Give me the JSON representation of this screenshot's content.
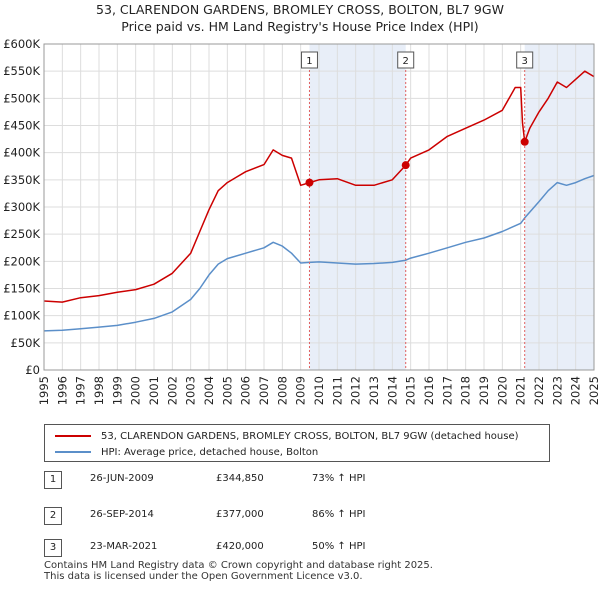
{
  "chart_data": {
    "type": "line",
    "title": "53, CLARENDON GARDENS, BROMLEY CROSS, BOLTON, BL7 9GW",
    "subtitle": "Price paid vs. HM Land Registry's House Price Index (HPI)",
    "xlabel": "",
    "ylabel": "",
    "xlim": [
      1995,
      2025
    ],
    "ylim": [
      0,
      600000
    ],
    "x_ticks": [
      "1995",
      "1996",
      "1997",
      "1998",
      "1999",
      "2000",
      "2001",
      "2002",
      "2003",
      "2004",
      "2005",
      "2006",
      "2007",
      "2008",
      "2009",
      "2010",
      "2011",
      "2012",
      "2013",
      "2014",
      "2015",
      "2016",
      "2017",
      "2018",
      "2019",
      "2020",
      "2021",
      "2022",
      "2023",
      "2024",
      "2025"
    ],
    "y_ticks": [
      {
        "value": 0,
        "label": "£0"
      },
      {
        "value": 50000,
        "label": "£50K"
      },
      {
        "value": 100000,
        "label": "£100K"
      },
      {
        "value": 150000,
        "label": "£150K"
      },
      {
        "value": 200000,
        "label": "£200K"
      },
      {
        "value": 250000,
        "label": "£250K"
      },
      {
        "value": 300000,
        "label": "£300K"
      },
      {
        "value": 350000,
        "label": "£350K"
      },
      {
        "value": 400000,
        "label": "£400K"
      },
      {
        "value": 450000,
        "label": "£450K"
      },
      {
        "value": 500000,
        "label": "£500K"
      },
      {
        "value": 550000,
        "label": "£550K"
      },
      {
        "value": 600000,
        "label": "£600K"
      }
    ],
    "grid": true,
    "shaded_ranges": [
      [
        2009.48,
        2014.73
      ],
      [
        2021.22,
        2025.0
      ]
    ],
    "series": [
      {
        "name": "53, CLARENDON GARDENS, BROMLEY CROSS, BOLTON, BL7 9GW (detached house)",
        "color": "#cc0000",
        "x": [
          1995.0,
          1996.0,
          1997.0,
          1998.0,
          1999.0,
          2000.0,
          2001.0,
          2002.0,
          2003.0,
          2003.5,
          2004.0,
          2004.5,
          2005.0,
          2005.5,
          2006.0,
          2007.0,
          2007.5,
          2008.0,
          2008.5,
          2009.0,
          2009.48,
          2010.0,
          2011.0,
          2012.0,
          2013.0,
          2014.0,
          2014.73,
          2015.0,
          2016.0,
          2017.0,
          2018.0,
          2019.0,
          2020.0,
          2020.7,
          2021.0,
          2021.1,
          2021.22,
          2021.5,
          2022.0,
          2022.5,
          2023.0,
          2023.5,
          2024.0,
          2024.5,
          2025.0
        ],
        "values": [
          127000,
          125000,
          133000,
          137000,
          143000,
          148000,
          158000,
          178000,
          215000,
          255000,
          295000,
          330000,
          345000,
          355000,
          365000,
          378000,
          405000,
          395000,
          390000,
          340000,
          344850,
          350000,
          352000,
          340000,
          340000,
          350000,
          377000,
          390000,
          405000,
          430000,
          445000,
          460000,
          478000,
          520000,
          520000,
          455000,
          420000,
          445000,
          475000,
          500000,
          530000,
          520000,
          535000,
          550000,
          540000
        ]
      },
      {
        "name": "HPI: Average price, detached house, Bolton",
        "color": "#5b8fc9",
        "x": [
          1995.0,
          1996.0,
          1997.0,
          1998.0,
          1999.0,
          2000.0,
          2001.0,
          2002.0,
          2003.0,
          2003.5,
          2004.0,
          2004.5,
          2005.0,
          2006.0,
          2007.0,
          2007.5,
          2008.0,
          2008.5,
          2009.0,
          2009.48,
          2010.0,
          2011.0,
          2012.0,
          2013.0,
          2014.0,
          2014.73,
          2015.0,
          2016.0,
          2017.0,
          2018.0,
          2019.0,
          2020.0,
          2021.0,
          2021.22,
          2022.0,
          2022.5,
          2023.0,
          2023.5,
          2024.0,
          2024.5,
          2025.0
        ],
        "values": [
          72000,
          73000,
          76000,
          79000,
          82000,
          88000,
          95000,
          107000,
          130000,
          150000,
          175000,
          195000,
          205000,
          215000,
          225000,
          235000,
          228000,
          215000,
          197000,
          198000,
          199000,
          197000,
          195000,
          196000,
          198000,
          202000,
          206000,
          215000,
          225000,
          235000,
          243000,
          255000,
          270000,
          280000,
          310000,
          330000,
          345000,
          340000,
          345000,
          352000,
          358000
        ]
      }
    ],
    "sale_markers": [
      {
        "label": "1",
        "x": 2009.48,
        "value": 344850
      },
      {
        "label": "2",
        "x": 2014.73,
        "value": 377000
      },
      {
        "label": "3",
        "x": 2021.22,
        "value": 420000
      }
    ]
  },
  "legend": {
    "property_label": "53, CLARENDON GARDENS, BROMLEY CROSS, BOLTON, BL7 9GW (detached house)",
    "hpi_label": "HPI: Average price, detached house, Bolton",
    "property_color": "#cc0000",
    "hpi_color": "#5b8fc9"
  },
  "sales": [
    {
      "num": "1",
      "date": "26-JUN-2009",
      "price": "£344,850",
      "hpi": "73% ↑ HPI"
    },
    {
      "num": "2",
      "date": "26-SEP-2014",
      "price": "£377,000",
      "hpi": "86% ↑ HPI"
    },
    {
      "num": "3",
      "date": "23-MAR-2021",
      "price": "£420,000",
      "hpi": "50% ↑ HPI"
    }
  ],
  "footer": {
    "line1": "Contains HM Land Registry data © Crown copyright and database right 2025.",
    "line2": "This data is licensed under the Open Government Licence v3.0."
  }
}
